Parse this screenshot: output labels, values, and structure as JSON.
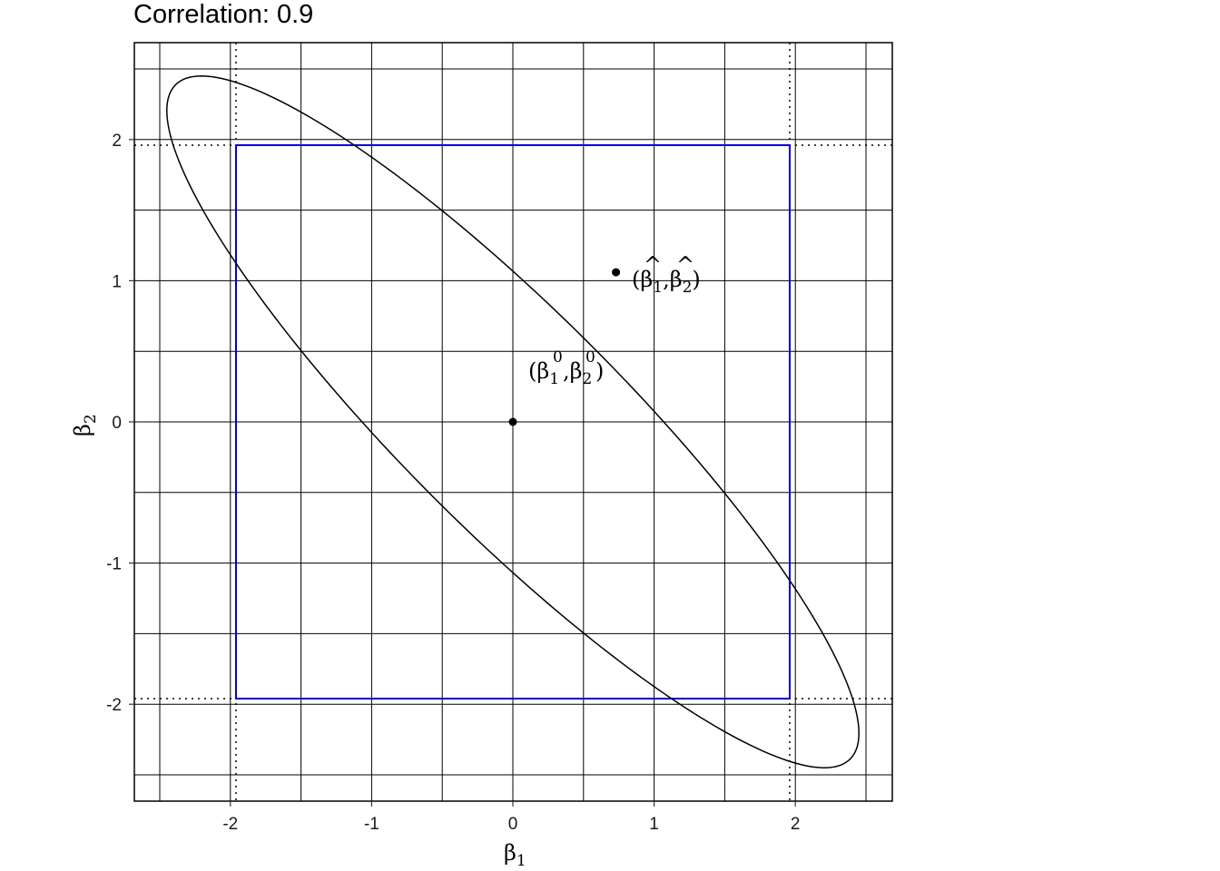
{
  "chart_data": {
    "type": "scatter",
    "title": "Correlation: 0.9",
    "xlabel": {
      "base": "β",
      "sub": "1"
    },
    "ylabel": {
      "base": "β",
      "sub": "2"
    },
    "xlim": [
      -2.6,
      2.6
    ],
    "ylim": [
      -2.6,
      2.6
    ],
    "x_ticks": [
      -2,
      -1,
      0,
      1,
      2
    ],
    "y_ticks": [
      -2,
      -1,
      0,
      1,
      2
    ],
    "x_tick_labels": [
      "-2",
      "-1",
      "0",
      "1",
      "2"
    ],
    "y_tick_labels": [
      "-2",
      "-1",
      "0",
      "1",
      "2"
    ],
    "grid": true,
    "grid_lines": [
      -2.5,
      -2,
      -1.5,
      -1,
      -0.5,
      0,
      0.5,
      1,
      1.5,
      2,
      2.5
    ],
    "confidence_box": {
      "x": [
        -1.96,
        1.96
      ],
      "y": [
        -1.96,
        1.96
      ],
      "color": "#0000cc"
    },
    "reference_lines": {
      "values": [
        -1.96,
        1.96
      ],
      "style": "dotted",
      "color": "#000000"
    },
    "ellipse": {
      "center": [
        0,
        0
      ],
      "correlation": 0.9,
      "x_half_range": 2.45,
      "y_half_range": 2.45,
      "color": "#000000"
    },
    "points": [
      {
        "x": 0,
        "y": 0,
        "label": {
          "open": "(",
          "b1": "β",
          "sub1": "1",
          "sup1": "0",
          "comma": ",",
          "b2": "β",
          "sub2": "2",
          "sup2": "0",
          "close": ")"
        }
      },
      {
        "x": 0.73,
        "y": 1.06,
        "label": {
          "open": "(",
          "b1": "β",
          "sub1": "1",
          "hat": "^",
          "comma": ",",
          "b2": "β",
          "sub2": "2",
          "close": ")"
        }
      }
    ]
  }
}
